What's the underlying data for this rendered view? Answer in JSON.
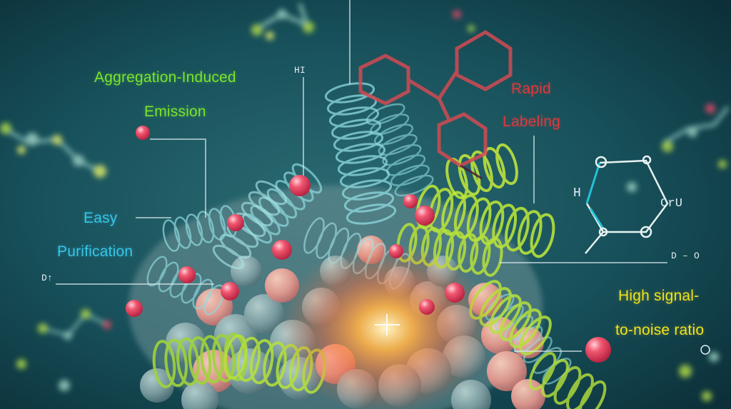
{
  "labels": {
    "aie_line1": "Aggregation-Induced",
    "aie_line2": "Emission",
    "easy_line1": "Easy",
    "easy_line2": "Purification",
    "rapid_line1": "Rapid",
    "rapid_line2": "Labeling",
    "signal_line1": "High signal-",
    "signal_line2": "to-noise ratio",
    "tag_hi": "HI",
    "tag_d_left": "D↑",
    "tag_d_right": "D – O",
    "tag_cru": "CrU",
    "tag_h": "H"
  },
  "colors": {
    "background": "#0f3a44",
    "green_text": "#7fe12b",
    "cyan_text": "#37c6e6",
    "red_text": "#e2373a",
    "yellow_text": "#f1e21a",
    "helix_green": "#b7e23a",
    "helix_cyan": "#7fd6dc",
    "bead_pink": "#e64a66",
    "glow_orange": "#ff8a3a"
  }
}
